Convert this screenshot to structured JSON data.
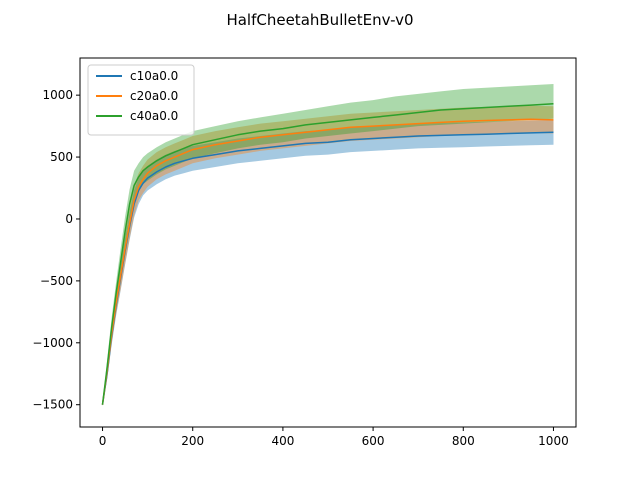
{
  "chart_data": {
    "type": "line",
    "title": "HalfCheetahBulletEnv-v0",
    "xlabel": "",
    "ylabel": "",
    "xlim": [
      -50,
      1050
    ],
    "ylim": [
      -1680,
      1300
    ],
    "xticks": [
      0,
      200,
      400,
      600,
      800,
      1000
    ],
    "yticks": [
      -1500,
      -1000,
      -500,
      0,
      500,
      1000
    ],
    "xtick_labels": [
      "0",
      "200",
      "400",
      "600",
      "800",
      "1000"
    ],
    "ytick_labels": [
      "−1500",
      "−1000",
      "−500",
      "0",
      "500",
      "1000"
    ],
    "grid": false,
    "legend_position": "top-left",
    "series": [
      {
        "name": "c10a0.0",
        "color": "#1f77b4",
        "x": [
          0,
          10,
          20,
          30,
          40,
          50,
          60,
          70,
          80,
          90,
          100,
          120,
          140,
          160,
          180,
          200,
          250,
          300,
          350,
          400,
          450,
          500,
          550,
          600,
          650,
          700,
          750,
          800,
          850,
          900,
          950,
          1000
        ],
        "y": [
          -1500,
          -1250,
          -950,
          -700,
          -480,
          -260,
          -60,
          120,
          230,
          290,
          330,
          380,
          420,
          450,
          470,
          490,
          520,
          550,
          570,
          590,
          610,
          620,
          640,
          650,
          660,
          670,
          675,
          680,
          685,
          690,
          695,
          700
        ],
        "y_low": [
          -1510,
          -1300,
          -1020,
          -780,
          -580,
          -370,
          -170,
          10,
          120,
          190,
          230,
          280,
          320,
          350,
          370,
          390,
          420,
          450,
          470,
          490,
          510,
          520,
          540,
          550,
          560,
          570,
          575,
          580,
          585,
          590,
          595,
          600
        ],
        "y_high": [
          -1490,
          -1200,
          -880,
          -620,
          -380,
          -150,
          50,
          230,
          330,
          390,
          430,
          480,
          520,
          550,
          570,
          590,
          620,
          650,
          670,
          690,
          710,
          720,
          740,
          750,
          760,
          770,
          775,
          780,
          785,
          790,
          795,
          800
        ]
      },
      {
        "name": "c20a0.0",
        "color": "#ff7f0e",
        "x": [
          0,
          10,
          20,
          30,
          40,
          50,
          60,
          70,
          80,
          90,
          100,
          120,
          140,
          160,
          180,
          200,
          250,
          300,
          350,
          400,
          450,
          500,
          550,
          600,
          650,
          700,
          750,
          800,
          850,
          900,
          950,
          1000
        ],
        "y": [
          -1500,
          -1230,
          -930,
          -680,
          -460,
          -240,
          -40,
          150,
          260,
          320,
          370,
          430,
          470,
          500,
          530,
          560,
          600,
          630,
          660,
          680,
          700,
          720,
          740,
          750,
          760,
          770,
          780,
          790,
          795,
          800,
          805,
          800
        ],
        "y_low": [
          -1510,
          -1290,
          -1010,
          -770,
          -570,
          -360,
          -160,
          30,
          150,
          210,
          260,
          320,
          360,
          390,
          420,
          450,
          490,
          520,
          550,
          570,
          590,
          610,
          630,
          640,
          650,
          660,
          670,
          680,
          685,
          690,
          695,
          690
        ],
        "y_high": [
          -1490,
          -1170,
          -850,
          -590,
          -350,
          -120,
          80,
          270,
          370,
          430,
          480,
          540,
          580,
          610,
          640,
          670,
          710,
          740,
          770,
          790,
          810,
          830,
          850,
          860,
          870,
          880,
          890,
          900,
          905,
          910,
          915,
          910
        ]
      },
      {
        "name": "c40a0.0",
        "color": "#2ca02c",
        "x": [
          0,
          10,
          20,
          30,
          40,
          50,
          60,
          70,
          80,
          90,
          100,
          120,
          140,
          160,
          180,
          200,
          250,
          300,
          350,
          400,
          450,
          500,
          550,
          600,
          650,
          700,
          750,
          800,
          850,
          900,
          950,
          1000
        ],
        "y": [
          -1500,
          -1200,
          -880,
          -600,
          -350,
          -100,
          120,
          270,
          340,
          390,
          420,
          470,
          510,
          540,
          570,
          600,
          640,
          680,
          710,
          730,
          760,
          780,
          800,
          820,
          840,
          860,
          880,
          890,
          900,
          910,
          920,
          930
        ],
        "y_low": [
          -1510,
          -1260,
          -960,
          -690,
          -460,
          -220,
          0,
          150,
          230,
          280,
          310,
          360,
          400,
          430,
          460,
          490,
          530,
          570,
          600,
          620,
          650,
          670,
          690,
          710,
          730,
          750,
          760,
          770,
          780,
          790,
          800,
          810
        ],
        "y_high": [
          -1490,
          -1140,
          -800,
          -510,
          -240,
          20,
          240,
          390,
          450,
          500,
          530,
          580,
          620,
          650,
          680,
          710,
          750,
          790,
          820,
          850,
          880,
          910,
          940,
          960,
          990,
          1010,
          1030,
          1050,
          1060,
          1070,
          1080,
          1090
        ]
      }
    ]
  }
}
